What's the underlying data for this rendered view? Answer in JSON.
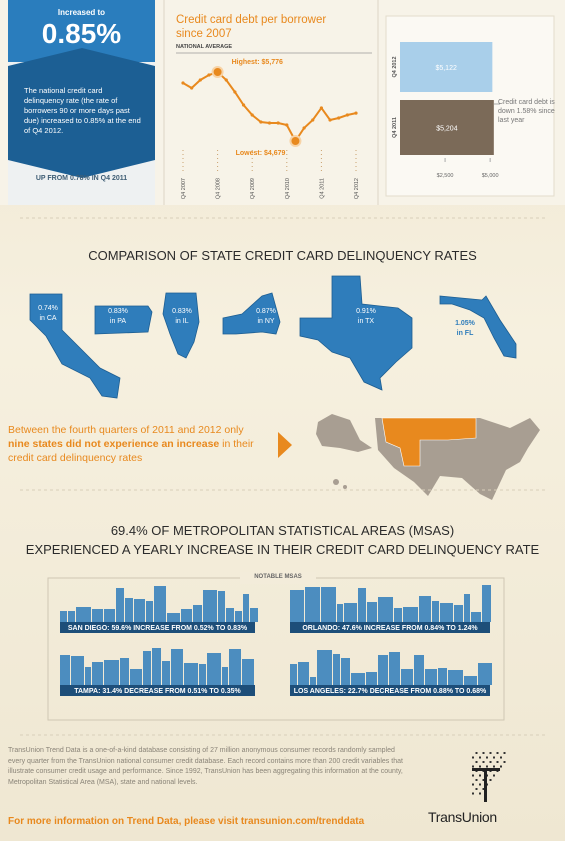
{
  "badge": {
    "label": "Increased to",
    "value": "0.85%",
    "text": "The national credit card delinquency rate (the rate of borrowers 90 or more days past due) increased to 0.85% at the end of Q4 2012.",
    "footnote": "UP FROM 0.78% IN Q4 2011"
  },
  "debt_chart": {
    "type": "line",
    "title": "Credit card debt per borrower since 2007",
    "subtitle": "NATIONAL AVERAGE",
    "categories": [
      "Q4 2007",
      null,
      null,
      null,
      "Q4 2008",
      null,
      null,
      null,
      "Q4 2009",
      null,
      null,
      null,
      "Q4 2010",
      null,
      null,
      null,
      "Q4 2011",
      null,
      null,
      null,
      "Q4 2012"
    ],
    "values": [
      5601,
      5522,
      5649,
      5728,
      5776,
      5649,
      5458,
      5251,
      5092,
      4981,
      4965,
      4965,
      4933,
      4679,
      4886,
      5013,
      5204,
      5013,
      5045,
      5092,
      5122
    ],
    "color": "#e8891e",
    "annotations": [
      {
        "index": 4,
        "text": "Highest: $5,776"
      },
      {
        "index": 13,
        "text": "Lowest: $4,679"
      }
    ]
  },
  "debt_bars": {
    "type": "bar",
    "categories": [
      "Q4 2012",
      "Q4 2011"
    ],
    "values": [
      5122,
      5204
    ],
    "value_labels": [
      "$5,122",
      "$5,204"
    ],
    "colors": [
      "#a9cfea",
      "#7b6a58"
    ],
    "xlim": [
      0,
      5500
    ],
    "xticks": [
      {
        "value": 2500,
        "label": "$2,500"
      },
      {
        "value": 5000,
        "label": "$5,000"
      }
    ],
    "annotation": "Credit card debt is down 1.58% since last year"
  },
  "states": {
    "title": "COMPARISON OF STATE CREDIT CARD DELINQUENCY RATES",
    "items": [
      {
        "rate": "0.74%",
        "name": "in CA"
      },
      {
        "rate": "0.83%",
        "name": "in PA"
      },
      {
        "rate": "0.83%",
        "name": "in IL"
      },
      {
        "rate": "0.87%",
        "name": "in NY"
      },
      {
        "rate": "0.91%",
        "name": "in TX"
      },
      {
        "rate": "1.05%",
        "name": "in FL"
      }
    ],
    "statement": {
      "before": "Between the fourth quarters of 2011 and 2012 only ",
      "bold": "nine states did not experience an increase",
      "after": " in their credit card delinquency rates"
    }
  },
  "msa": {
    "title_lines": [
      "69.4% OF METROPOLITAN STATISTICAL AREAS (MSAS)",
      "EXPERIENCED A YEARLY INCREASE IN THEIR CREDIT CARD DELINQUENCY RATE"
    ],
    "box_label": "NOTABLE MSAS",
    "items": [
      "SAN DIEGO: 59.6% INCREASE FROM 0.52% TO 0.83%",
      "ORLANDO: 47.6% INCREASE FROM 0.84% TO 1.24%",
      "TAMPA: 31.4% DECREASE FROM 0.51% TO 0.35%",
      "LOS ANGELES: 22.7% DECREASE FROM 0.88% TO 0.68%"
    ]
  },
  "footer": {
    "text": "TransUnion Trend Data is a one-of-a-kind database consisting of 27 million anonymous consumer records randomly sampled every quarter from the TransUnion national consumer credit database. Each record contains more than 200 credit variables that illustrate consumer credit usage and performance. Since 1992, TransUnion has been aggregating this information at the county, Metropolitan Statistical Area (MSA), state and national levels.",
    "link": "For more information on Trend Data, please visit transunion.com/trenddata",
    "logo": "TransUnion"
  }
}
